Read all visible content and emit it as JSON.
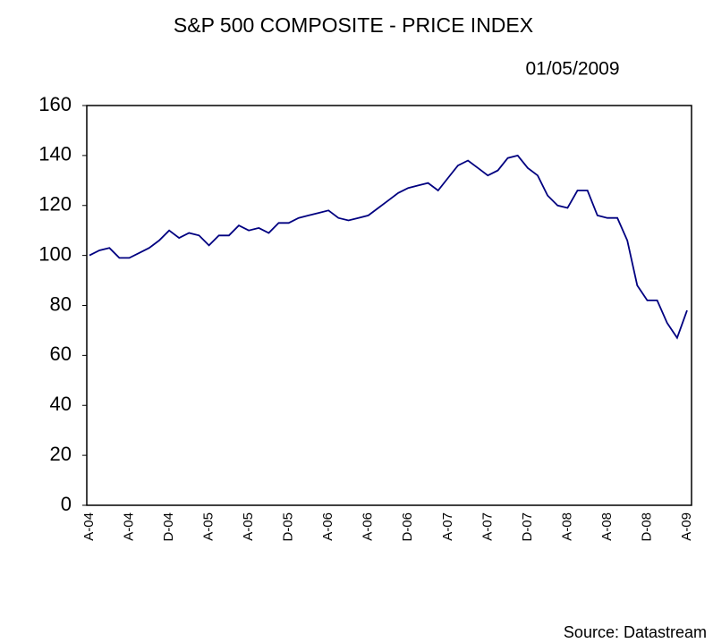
{
  "chart_data": {
    "type": "line",
    "title": "S&P 500 COMPOSITE - PRICE INDEX",
    "subtitle": "01/05/2009",
    "source": "Source: Datastream",
    "categories": [
      "A-04",
      null,
      null,
      null,
      "A-04",
      null,
      null,
      null,
      "D-04",
      null,
      null,
      null,
      "A-05",
      null,
      null,
      null,
      "A-05",
      null,
      null,
      null,
      "D-05",
      null,
      null,
      null,
      "A-06",
      null,
      null,
      null,
      "A-06",
      null,
      null,
      null,
      "D-06",
      null,
      null,
      null,
      "A-07",
      null,
      null,
      null,
      "A-07",
      null,
      null,
      null,
      "D-07",
      null,
      null,
      null,
      "A-08",
      null,
      null,
      null,
      "A-08",
      null,
      null,
      null,
      "D-08",
      null,
      null,
      null,
      "A-09"
    ],
    "series": [
      {
        "color": "#000080",
        "values": [
          100,
          102,
          103,
          99,
          99,
          101,
          103,
          106,
          110,
          107,
          109,
          108,
          104,
          108,
          108,
          112,
          110,
          111,
          109,
          113,
          113,
          115,
          116,
          117,
          118,
          115,
          114,
          115,
          116,
          119,
          122,
          125,
          127,
          128,
          129,
          126,
          131,
          136,
          138,
          135,
          132,
          134,
          139,
          140,
          135,
          132,
          124,
          120,
          119,
          126,
          126,
          116,
          115,
          115,
          106,
          88,
          82,
          82,
          73,
          67,
          78
        ]
      }
    ],
    "ylim": [
      0,
      160
    ],
    "yticks": [
      0,
      20,
      40,
      60,
      80,
      100,
      120,
      140,
      160
    ],
    "grid": false
  }
}
